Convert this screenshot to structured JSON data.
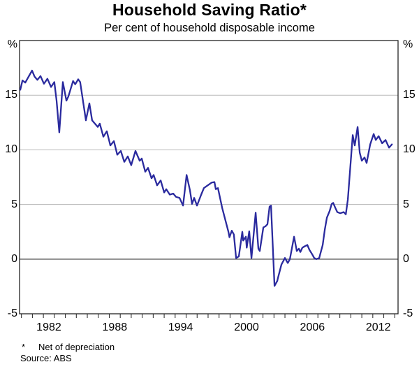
{
  "header": {
    "title": "Household Saving Ratio*",
    "subtitle": "Per cent of household disposable income"
  },
  "footer": {
    "footnote_marker": "*",
    "footnote_text": "Net of depreciation",
    "source_text": "Source: ABS"
  },
  "colors": {
    "line": "#2a2a9e",
    "grid": "#b8b8b8",
    "zero_line": "#4a4a4a",
    "frame": "#222222",
    "tick": "#222222",
    "text": "#000000"
  },
  "chart_data": {
    "type": "line",
    "title": "Household Saving Ratio*",
    "subtitle": "Per cent of household disposable income",
    "ylabel_unit": "%",
    "ylim": [
      -5,
      20
    ],
    "xlim": [
      1979.83,
      2014.3
    ],
    "y_tick_labels": [
      15,
      10,
      5,
      0,
      -5
    ],
    "y_gridlines": [
      15,
      10,
      5
    ],
    "zero_line_value": 0,
    "x_label_years": [
      1982,
      1988,
      1994,
      2000,
      2006,
      2012
    ],
    "x_minor_tick_every": 1,
    "grid": "horizontal-only",
    "legend": "none",
    "series": [
      {
        "name": "Household saving ratio (per cent of household disposable income, net of depreciation)",
        "points": [
          [
            1979.9,
            15.5
          ],
          [
            1980.1,
            16.35
          ],
          [
            1980.35,
            16.15
          ],
          [
            1980.6,
            16.6
          ],
          [
            1980.97,
            17.25
          ],
          [
            1981.2,
            16.7
          ],
          [
            1981.45,
            16.4
          ],
          [
            1981.74,
            16.75
          ],
          [
            1982.05,
            16.05
          ],
          [
            1982.37,
            16.5
          ],
          [
            1982.7,
            15.75
          ],
          [
            1983.0,
            16.2
          ],
          [
            1983.2,
            14.5
          ],
          [
            1983.45,
            11.6
          ],
          [
            1983.77,
            16.2
          ],
          [
            1984.1,
            14.5
          ],
          [
            1984.28,
            14.9
          ],
          [
            1984.7,
            16.3
          ],
          [
            1984.9,
            16.0
          ],
          [
            1985.17,
            16.45
          ],
          [
            1985.35,
            16.2
          ],
          [
            1985.87,
            12.7
          ],
          [
            1986.19,
            14.25
          ],
          [
            1986.44,
            12.7
          ],
          [
            1986.95,
            12.1
          ],
          [
            1987.14,
            12.4
          ],
          [
            1987.46,
            11.2
          ],
          [
            1987.78,
            11.7
          ],
          [
            1988.1,
            10.4
          ],
          [
            1988.42,
            10.8
          ],
          [
            1988.73,
            9.55
          ],
          [
            1989.05,
            9.9
          ],
          [
            1989.37,
            8.9
          ],
          [
            1989.69,
            9.4
          ],
          [
            1990.0,
            8.6
          ],
          [
            1990.39,
            9.9
          ],
          [
            1990.77,
            9.0
          ],
          [
            1990.96,
            9.2
          ],
          [
            1991.28,
            8.0
          ],
          [
            1991.53,
            8.35
          ],
          [
            1991.85,
            7.4
          ],
          [
            1992.04,
            7.7
          ],
          [
            1992.36,
            6.75
          ],
          [
            1992.68,
            7.2
          ],
          [
            1993.0,
            6.1
          ],
          [
            1993.19,
            6.4
          ],
          [
            1993.51,
            5.9
          ],
          [
            1993.83,
            6.0
          ],
          [
            1994.08,
            5.7
          ],
          [
            1994.4,
            5.6
          ],
          [
            1994.72,
            4.9
          ],
          [
            1995.04,
            7.7
          ],
          [
            1995.35,
            6.3
          ],
          [
            1995.54,
            5.05
          ],
          [
            1995.73,
            5.6
          ],
          [
            1995.99,
            4.9
          ],
          [
            1996.37,
            5.9
          ],
          [
            1996.62,
            6.5
          ],
          [
            1997.32,
            7.0
          ],
          [
            1997.58,
            7.05
          ],
          [
            1997.7,
            6.4
          ],
          [
            1997.9,
            6.5
          ],
          [
            1998.28,
            4.7
          ],
          [
            1998.85,
            2.5
          ],
          [
            1998.95,
            2.0
          ],
          [
            1999.16,
            2.6
          ],
          [
            1999.35,
            2.25
          ],
          [
            1999.55,
            0.1
          ],
          [
            1999.8,
            0.25
          ],
          [
            2000.12,
            2.5
          ],
          [
            2000.2,
            1.7
          ],
          [
            2000.44,
            2.05
          ],
          [
            2000.52,
            1.05
          ],
          [
            2000.75,
            2.55
          ],
          [
            2000.95,
            0.1
          ],
          [
            2001.33,
            4.25
          ],
          [
            2001.58,
            0.95
          ],
          [
            2001.71,
            0.75
          ],
          [
            2002.03,
            2.9
          ],
          [
            2002.22,
            3.0
          ],
          [
            2002.41,
            3.2
          ],
          [
            2002.6,
            4.8
          ],
          [
            2002.73,
            4.9
          ],
          [
            2003.05,
            -2.45
          ],
          [
            2003.3,
            -2.0
          ],
          [
            2003.37,
            -1.7
          ],
          [
            2003.68,
            -0.5
          ],
          [
            2004.0,
            0.1
          ],
          [
            2004.26,
            -0.35
          ],
          [
            2004.45,
            0.0
          ],
          [
            2004.83,
            2.05
          ],
          [
            2005.08,
            0.75
          ],
          [
            2005.27,
            0.95
          ],
          [
            2005.4,
            0.65
          ],
          [
            2005.59,
            1.05
          ],
          [
            2005.85,
            1.2
          ],
          [
            2006.04,
            1.3
          ],
          [
            2006.23,
            0.85
          ],
          [
            2006.48,
            0.45
          ],
          [
            2006.67,
            0.1
          ],
          [
            2006.86,
            0.0
          ],
          [
            2007.12,
            0.1
          ],
          [
            2007.44,
            1.3
          ],
          [
            2007.63,
            2.7
          ],
          [
            2007.82,
            3.8
          ],
          [
            2008.07,
            4.4
          ],
          [
            2008.26,
            5.05
          ],
          [
            2008.39,
            5.15
          ],
          [
            2008.58,
            4.7
          ],
          [
            2008.77,
            4.3
          ],
          [
            2009.03,
            4.2
          ],
          [
            2009.35,
            4.3
          ],
          [
            2009.54,
            4.1
          ],
          [
            2009.73,
            5.45
          ],
          [
            2010.17,
            11.35
          ],
          [
            2010.36,
            10.4
          ],
          [
            2010.62,
            12.1
          ],
          [
            2010.81,
            9.75
          ],
          [
            2011.0,
            9.0
          ],
          [
            2011.25,
            9.3
          ],
          [
            2011.44,
            8.8
          ],
          [
            2011.76,
            10.5
          ],
          [
            2012.08,
            11.45
          ],
          [
            2012.27,
            10.9
          ],
          [
            2012.53,
            11.25
          ],
          [
            2012.85,
            10.6
          ],
          [
            2013.16,
            10.9
          ],
          [
            2013.48,
            10.2
          ],
          [
            2013.74,
            10.5
          ]
        ]
      }
    ]
  }
}
